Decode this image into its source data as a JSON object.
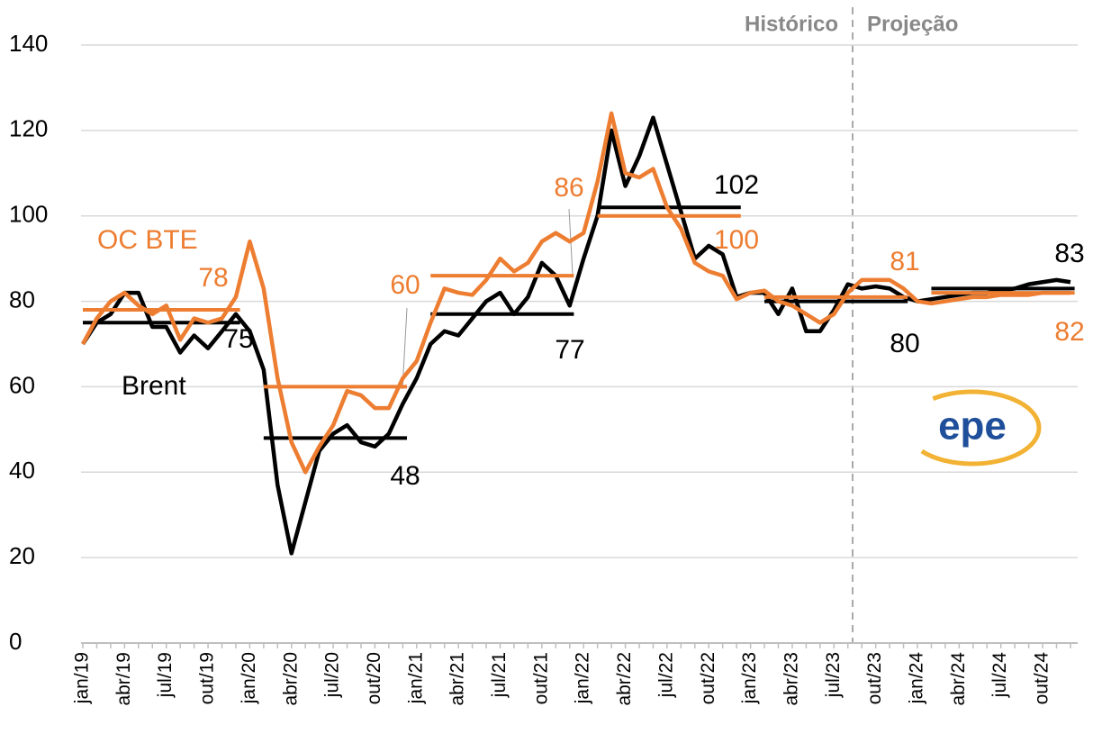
{
  "chart_data": {
    "type": "line",
    "categories": [
      "jan/19",
      null,
      null,
      "abr/19",
      null,
      null,
      "jul/19",
      null,
      null,
      "out/19",
      null,
      null,
      "jan/20",
      null,
      null,
      "abr/20",
      null,
      null,
      "jul/20",
      null,
      null,
      "out/20",
      null,
      null,
      "jan/21",
      null,
      null,
      "abr/21",
      null,
      null,
      "jul/21",
      null,
      null,
      "out/21",
      null,
      null,
      "jan/22",
      null,
      null,
      "abr/22",
      null,
      null,
      "jul/22",
      null,
      null,
      "out/22",
      null,
      null,
      "jan/23",
      null,
      null,
      "abr/23",
      null,
      null,
      "jul/23",
      null,
      null,
      "out/23",
      null,
      null,
      "jan/24",
      null,
      null,
      "abr/24",
      null,
      null,
      "jul/24",
      null,
      null,
      "out/24",
      null,
      null
    ],
    "series": [
      {
        "name": "Brent",
        "color": "#000000",
        "values": [
          70,
          75,
          77,
          82,
          82,
          74,
          74,
          68,
          72,
          69,
          73,
          77,
          73,
          64,
          37,
          21,
          33,
          45,
          49,
          51,
          47,
          46,
          49,
          56,
          62,
          70,
          73,
          72,
          76,
          80,
          82,
          77,
          81,
          89,
          86,
          79,
          90,
          100,
          120,
          107,
          114,
          123,
          112,
          101,
          90,
          93,
          91,
          81,
          82,
          82,
          77,
          83,
          73,
          73,
          78,
          84,
          83,
          83.5,
          83,
          81,
          80,
          80.5,
          81,
          81.5,
          82,
          82,
          82.5,
          83,
          84,
          84.5,
          85,
          84.5
        ],
        "annual_values": [
          75,
          48,
          77,
          102,
          80,
          83
        ]
      },
      {
        "name": "OC BTE",
        "color": "#ed7d31",
        "values": [
          70,
          76,
          80,
          82,
          79,
          77,
          79,
          71,
          76,
          75,
          76,
          81,
          94,
          83,
          62,
          47,
          40,
          46,
          51,
          59,
          58,
          55,
          55,
          62,
          66,
          75,
          83,
          82,
          81.5,
          85,
          90,
          87,
          89,
          94,
          96,
          94,
          96,
          108,
          124,
          110,
          109,
          111,
          102,
          97,
          89,
          87,
          86,
          80.5,
          82,
          82.5,
          80,
          79,
          77,
          75,
          77,
          82,
          85,
          85,
          85,
          83,
          80,
          79.5,
          80,
          80.5,
          81,
          81,
          81.5,
          81.5,
          81.5,
          82,
          82,
          82
        ],
        "annual_values": [
          78,
          60,
          86,
          100,
          81,
          82
        ]
      }
    ],
    "ylim": [
      0,
      140
    ],
    "yticks": [
      0,
      20,
      40,
      60,
      80,
      100,
      120,
      140
    ],
    "grid": true,
    "annotations": [
      "Histórico",
      "Projeção"
    ],
    "logo": "epe"
  }
}
